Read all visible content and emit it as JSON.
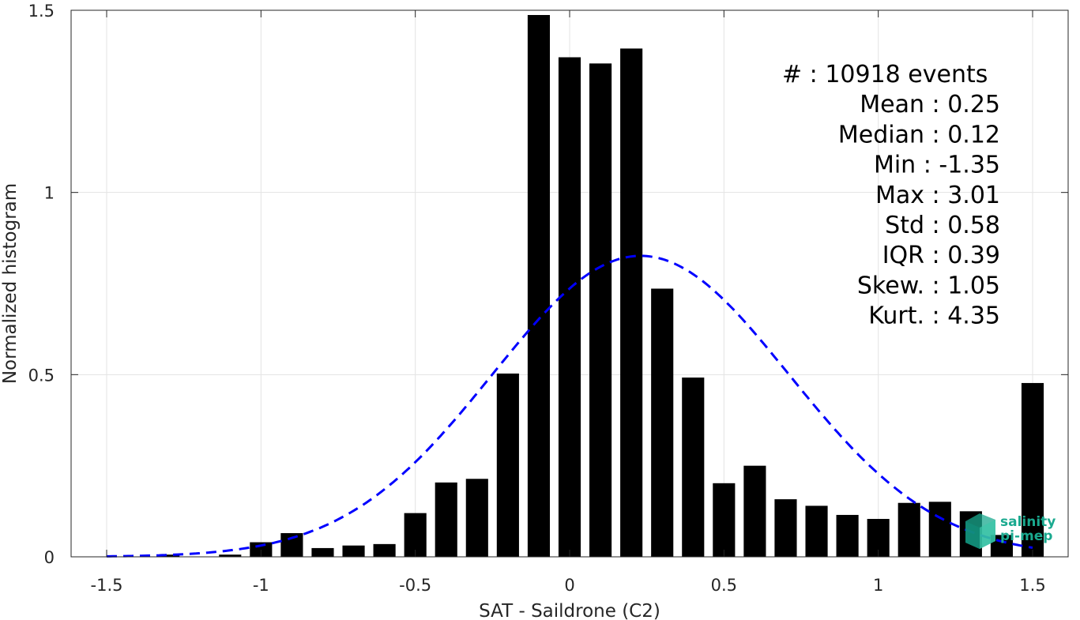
{
  "chart_data": {
    "type": "bar",
    "xlabel": "SAT - Saildrone (C2)",
    "ylabel": "Normalized histogram",
    "xlim": [
      -1.5,
      1.5
    ],
    "ylim": [
      0,
      1.5
    ],
    "grid": true,
    "x_ticks": [
      -1.5,
      -1,
      -0.5,
      0,
      0.5,
      1,
      1.5
    ],
    "x_tick_labels": [
      "-1.5",
      "-1",
      "-0.5",
      "0",
      "0.5",
      "1",
      "1.5"
    ],
    "y_ticks": [
      0,
      0.5,
      1,
      1.5
    ],
    "y_tick_labels": [
      "0",
      "0.5",
      "1",
      "1.5"
    ],
    "bar_color": "#000000",
    "fit_color": "#0000ff",
    "bars": {
      "x": [
        -1.5,
        -1.4,
        -1.3,
        -1.2,
        -1.1,
        -1.0,
        -0.9,
        -0.8,
        -0.7,
        -0.6,
        -0.5,
        -0.4,
        -0.3,
        -0.2,
        -0.1,
        0.0,
        0.1,
        0.2,
        0.3,
        0.4,
        0.5,
        0.6,
        0.7,
        0.8,
        0.9,
        1.0,
        1.1,
        1.2,
        1.3,
        1.4,
        1.5
      ],
      "values": [
        0.0,
        0.0,
        0.006,
        0.0,
        0.006,
        0.04,
        0.065,
        0.024,
        0.031,
        0.035,
        0.12,
        0.204,
        0.214,
        0.503,
        1.487,
        1.371,
        1.354,
        1.395,
        0.736,
        0.492,
        0.202,
        0.25,
        0.158,
        0.14,
        0.115,
        0.104,
        0.148,
        0.151,
        0.125,
        0.06,
        0.477
      ]
    },
    "fit_curve": {
      "style": "dashed",
      "mean": 0.23,
      "std": 0.48,
      "peak": 0.826
    },
    "stats": [
      "#  : 10918 events",
      "Mean : 0.25",
      "Median : 0.12",
      "Min : -1.35",
      "Max : 3.01",
      "Std : 0.58",
      "IQR : 0.39",
      "Skew. : 1.05",
      "Kurt. : 4.35"
    ]
  },
  "logo": {
    "line1": "salinity",
    "line2": "pi-mep",
    "color": "#1aa98f"
  }
}
